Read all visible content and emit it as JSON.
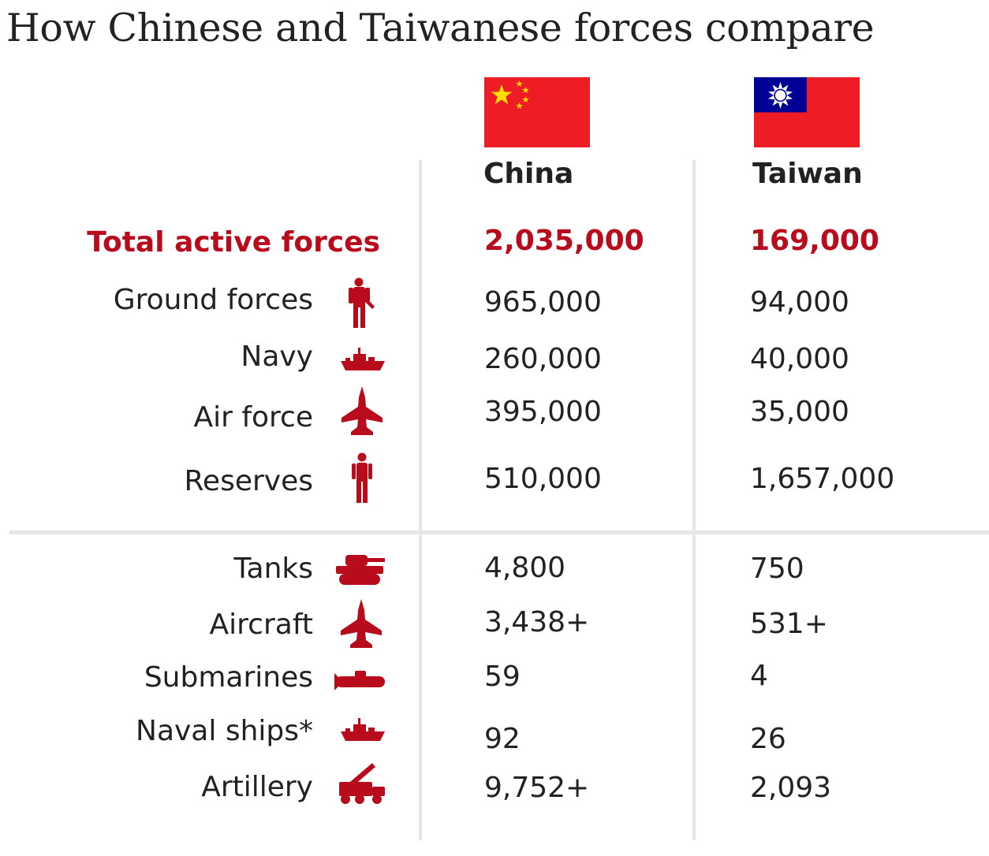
{
  "title": "How Chinese and Taiwanese forces compare",
  "colors": {
    "accent": "#b80c1c",
    "flag_red": "#ee1c25",
    "flag_blue": "#000095",
    "divider": "#e6e6e6"
  },
  "countries": [
    {
      "name": "China",
      "flag_icon": "china-flag"
    },
    {
      "name": "Taiwan",
      "flag_icon": "taiwan-flag"
    }
  ],
  "chart_data": {
    "type": "table",
    "title": "How Chinese and Taiwanese forces compare",
    "columns": [
      "China",
      "Taiwan"
    ],
    "rows": [
      {
        "label": "Total active forces",
        "icon": "",
        "china": "2,035,000",
        "taiwan": "169,000",
        "highlight": true
      },
      {
        "label": "Ground forces",
        "icon": "soldier-icon",
        "china": "965,000",
        "taiwan": "94,000"
      },
      {
        "label": "Navy",
        "icon": "ship-icon",
        "china": "260,000",
        "taiwan": "40,000"
      },
      {
        "label": "Air force",
        "icon": "jet-icon",
        "china": "395,000",
        "taiwan": "35,000"
      },
      {
        "label": "Reserves",
        "icon": "person-icon",
        "china": "510,000",
        "taiwan": "1,657,000"
      },
      {
        "label": "Tanks",
        "icon": "tank-icon",
        "china": "4,800",
        "taiwan": "750"
      },
      {
        "label": "Aircraft",
        "icon": "jet-icon",
        "china": "3,438+",
        "taiwan": "531+"
      },
      {
        "label": "Submarines",
        "icon": "submarine-icon",
        "china": "59",
        "taiwan": "4"
      },
      {
        "label": "Naval ships*",
        "icon": "ship-icon",
        "china": "92",
        "taiwan": "26"
      },
      {
        "label": "Artillery",
        "icon": "rocket-launcher-icon",
        "china": "9,752+",
        "taiwan": "2,093"
      }
    ]
  }
}
